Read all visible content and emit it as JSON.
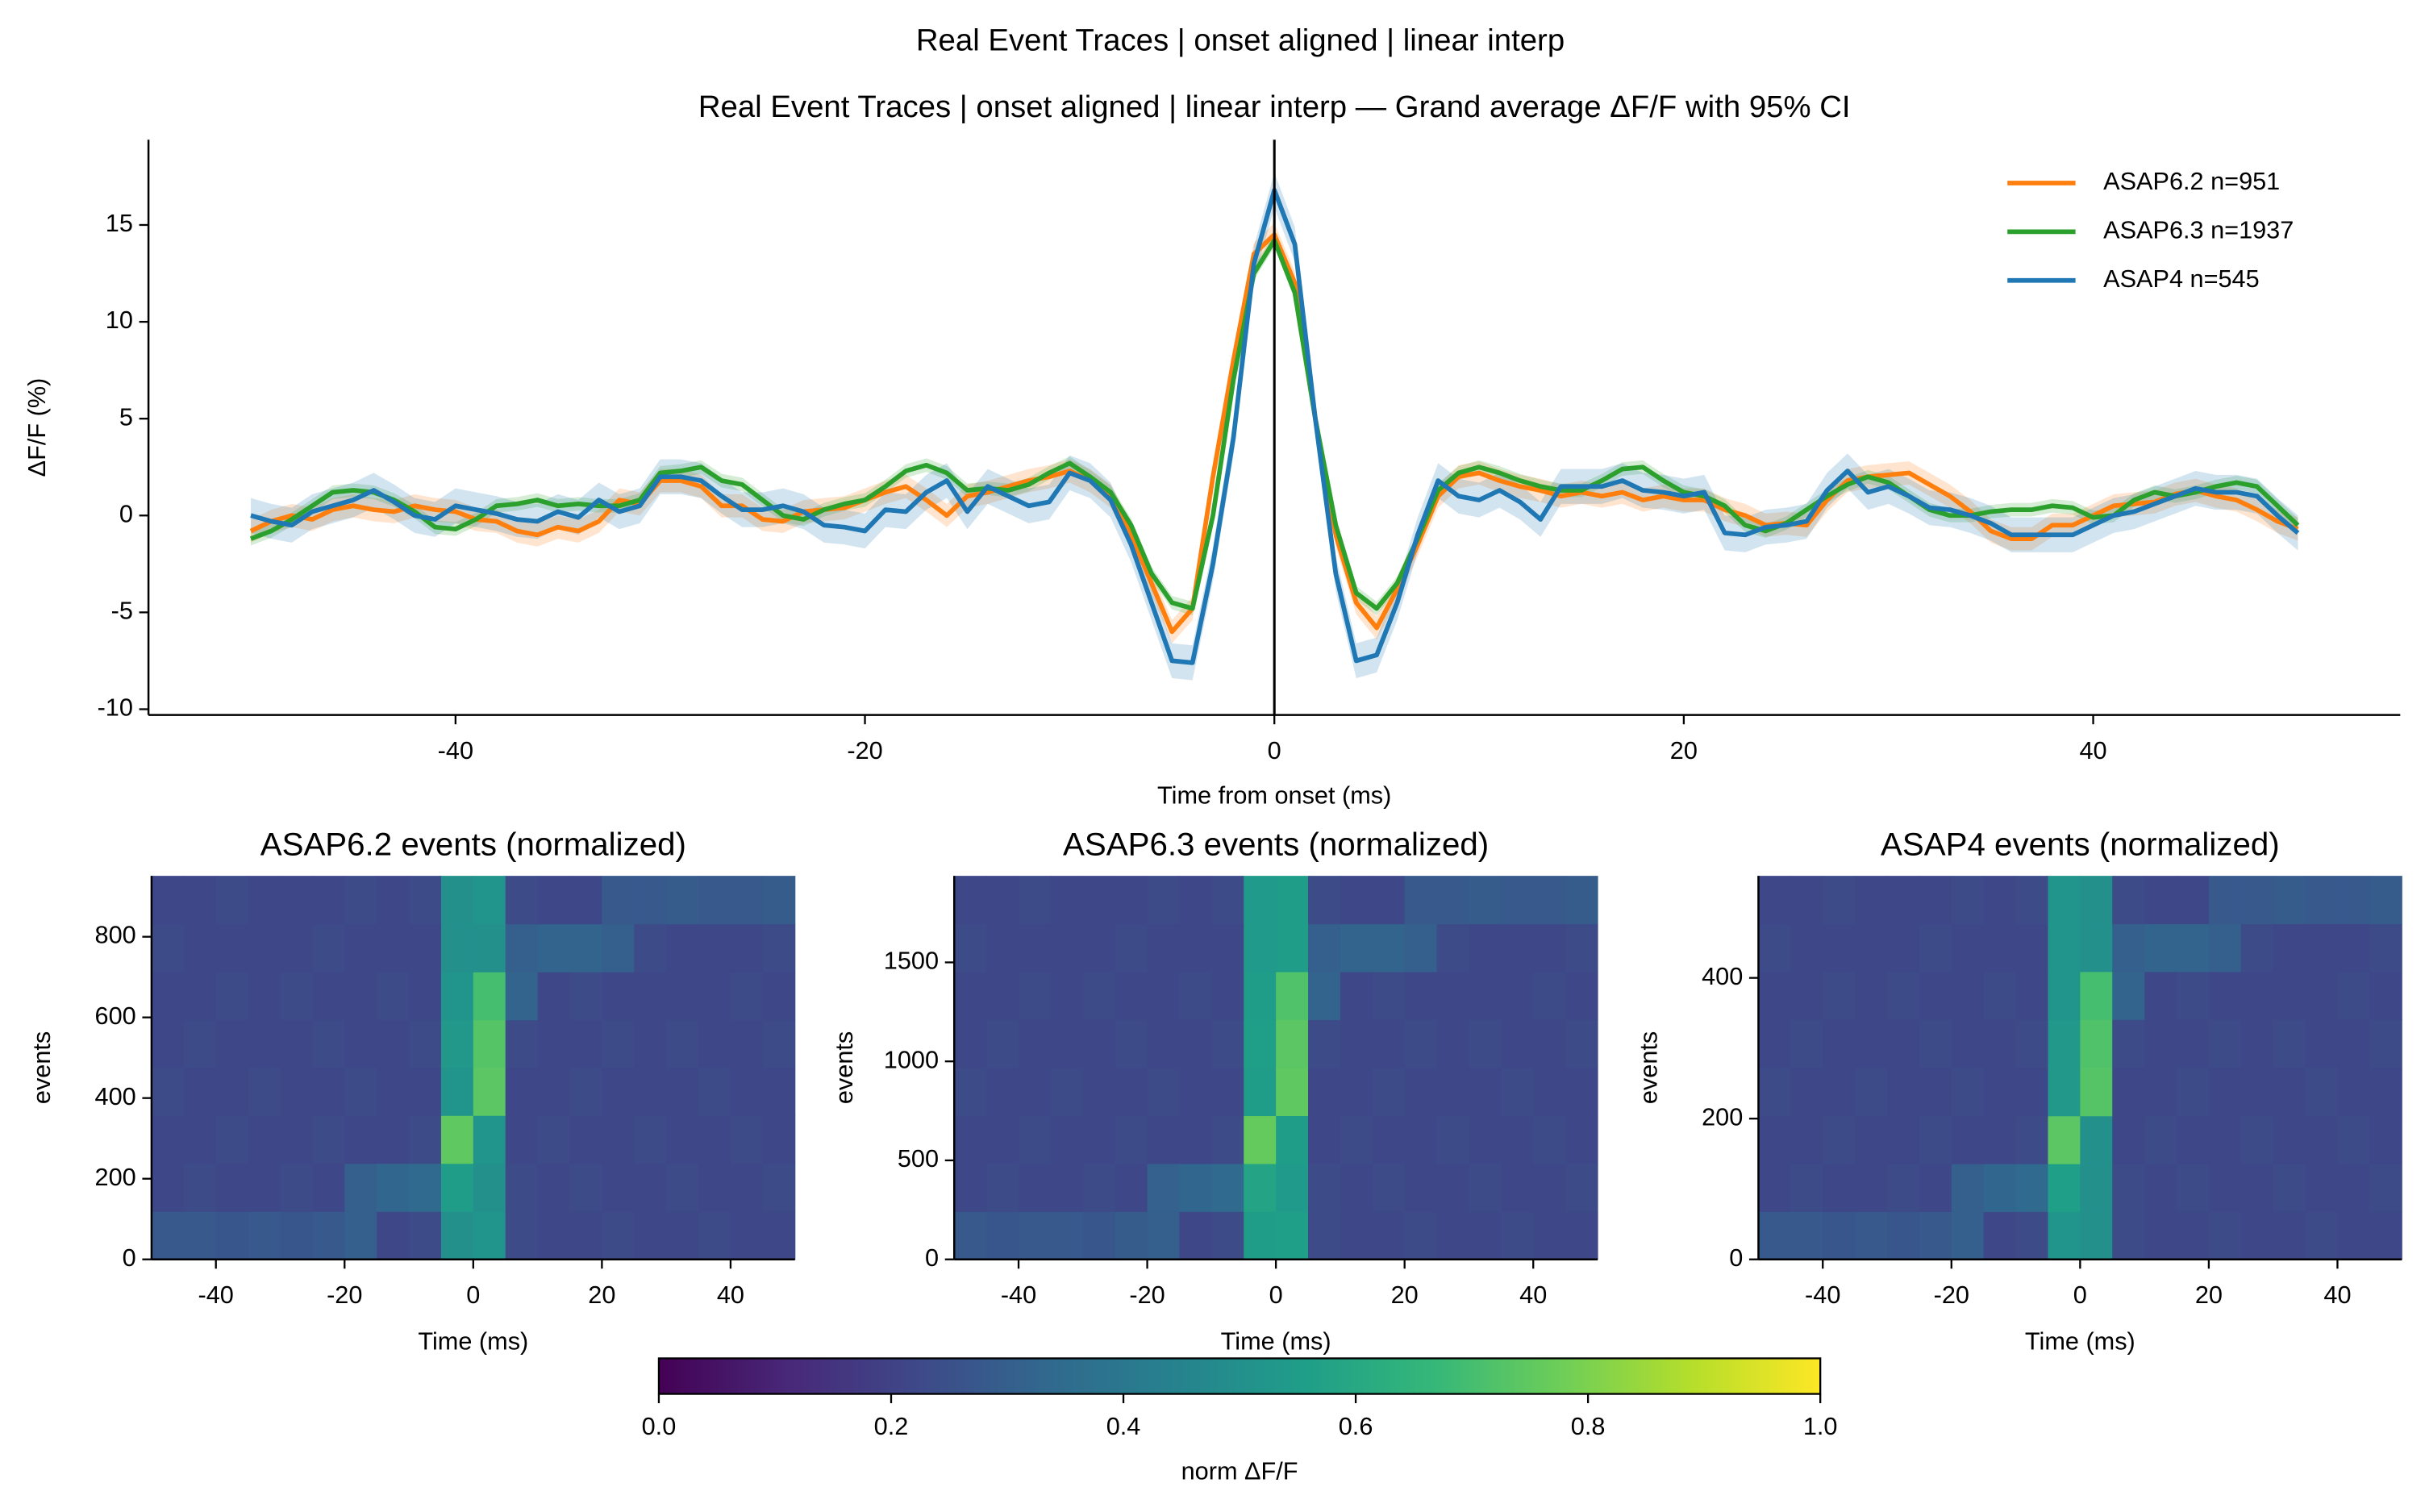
{
  "title": "Real Event Traces | onset aligned | linear interp",
  "chart_data": [
    {
      "type": "line",
      "title": "Real Event Traces | onset aligned | linear interp — Grand average ΔF/F with 95% CI",
      "xlabel": "Time from onset (ms)",
      "ylabel": "ΔF/F (%)",
      "xlim": [
        -55,
        55
      ],
      "ylim": [
        -10.3,
        19.4
      ],
      "xticks": [
        -40,
        -20,
        0,
        20,
        40
      ],
      "yticks": [
        -10,
        -5,
        0,
        5,
        10,
        15
      ],
      "vline": 0,
      "legend": "upper right",
      "x": [
        -50,
        -49,
        -48,
        -47,
        -46,
        -45,
        -44,
        -43,
        -42,
        -41,
        -40,
        -39,
        -38,
        -37,
        -36,
        -35,
        -34,
        -33,
        -32,
        -31,
        -30,
        -29,
        -28,
        -27,
        -26,
        -25,
        -24,
        -23,
        -22,
        -21,
        -20,
        -19,
        -18,
        -17,
        -16,
        -15,
        -14,
        -13,
        -12,
        -11,
        -10,
        -9,
        -8,
        -7,
        -6,
        -5,
        -4,
        -3,
        -2,
        -1,
        0,
        1,
        2,
        3,
        4,
        5,
        6,
        7,
        8,
        9,
        10,
        11,
        12,
        13,
        14,
        15,
        16,
        17,
        18,
        19,
        20,
        21,
        22,
        23,
        24,
        25,
        26,
        27,
        28,
        29,
        30,
        31,
        32,
        33,
        34,
        35,
        36,
        37,
        38,
        39,
        40,
        41,
        42,
        43,
        44,
        45,
        46,
        47,
        48,
        49,
        50
      ],
      "series": [
        {
          "name": "ASAP6.2  n=951",
          "color": "#ff7f0e",
          "ci": 0.6,
          "values": [
            -0.8,
            -0.3,
            0,
            -0.2,
            0.3,
            0.5,
            0.3,
            0.2,
            0.5,
            0.3,
            0.2,
            -0.2,
            -0.3,
            -0.8,
            -1.0,
            -0.6,
            -0.8,
            -0.3,
            0.8,
            0.6,
            1.8,
            1.8,
            1.5,
            0.5,
            0.5,
            -0.2,
            -0.3,
            0.2,
            0.3,
            0.4,
            0.8,
            1.2,
            1.5,
            0.8,
            0.0,
            1.0,
            1.2,
            1.5,
            1.8,
            2.0,
            2.3,
            1.8,
            1.0,
            -1.0,
            -3.5,
            -6.0,
            -4.8,
            2,
            8,
            13.5,
            14.5,
            12,
            5,
            -1,
            -4.5,
            -5.8,
            -3.8,
            -1.5,
            1.0,
            2.0,
            2.2,
            1.8,
            1.5,
            1.3,
            1.0,
            1.2,
            1.0,
            1.2,
            0.8,
            1.0,
            0.8,
            0.8,
            0.3,
            0.0,
            -0.5,
            -0.4,
            -0.5,
            0.8,
            1.8,
            2.0,
            2.1,
            2.2,
            1.6,
            1.0,
            0.2,
            -0.8,
            -1.2,
            -1.2,
            -0.5,
            -0.5,
            0,
            0.5,
            0.6,
            0.7,
            1.1,
            1.3,
            1.0,
            0.8,
            0.3,
            -0.3,
            -0.7
          ]
        },
        {
          "name": "ASAP6.3  n=1937",
          "color": "#2ca02c",
          "ci": 0.35,
          "values": [
            -1.2,
            -0.8,
            -0.2,
            0.5,
            1.2,
            1.3,
            1.2,
            0.8,
            0.2,
            -0.6,
            -0.7,
            -0.2,
            0.5,
            0.6,
            0.8,
            0.5,
            0.6,
            0.5,
            0.5,
            0.8,
            2.2,
            2.3,
            2.5,
            1.8,
            1.6,
            0.8,
            0.0,
            -0.2,
            0.3,
            0.6,
            0.8,
            1.5,
            2.3,
            2.6,
            2.2,
            1.3,
            1.4,
            1.3,
            1.6,
            2.2,
            2.7,
            2.0,
            1.2,
            -0.5,
            -3,
            -4.5,
            -4.8,
            0,
            7,
            12.5,
            14.2,
            11.5,
            5,
            -0.5,
            -4,
            -4.8,
            -3.5,
            -1.2,
            1.3,
            2.2,
            2.5,
            2.2,
            1.8,
            1.5,
            1.3,
            1.3,
            1.8,
            2.4,
            2.5,
            1.8,
            1.2,
            1.0,
            0.5,
            -0.5,
            -0.8,
            -0.4,
            0.3,
            1.0,
            1.6,
            2.0,
            1.7,
            1.0,
            0.3,
            0.0,
            0.0,
            0.2,
            0.3,
            0.3,
            0.5,
            0.4,
            -0.1,
            0.0,
            0.8,
            1.2,
            1.0,
            1.2,
            1.5,
            1.7,
            1.5,
            0.5,
            -0.5
          ]
        },
        {
          "name": "ASAP4  n=545",
          "color": "#1f77b4",
          "ci": 0.9,
          "values": [
            0,
            -0.3,
            -0.5,
            0.2,
            0.5,
            0.8,
            1.3,
            0.7,
            0,
            -0.2,
            0.5,
            0.3,
            0.1,
            -0.2,
            -0.3,
            0.2,
            -0.1,
            0.8,
            0.2,
            0.5,
            2.0,
            2.0,
            1.8,
            1.0,
            0.3,
            0.3,
            0.5,
            0.2,
            -0.5,
            -0.6,
            -0.8,
            0.3,
            0.2,
            1.2,
            1.8,
            0.2,
            1.5,
            1.0,
            0.5,
            0.7,
            2.2,
            1.8,
            0.8,
            -1.5,
            -4.5,
            -7.5,
            -7.6,
            -2.5,
            4,
            13,
            16.8,
            14,
            5,
            -3,
            -7.5,
            -7.2,
            -4.5,
            -1,
            1.8,
            1.0,
            0.8,
            1.3,
            0.7,
            -0.2,
            1.5,
            1.5,
            1.5,
            1.8,
            1.3,
            1.2,
            1.0,
            1.2,
            -0.9,
            -1.0,
            -0.6,
            -0.5,
            -0.3,
            1.3,
            2.3,
            1.2,
            1.5,
            1.0,
            0.4,
            0.3,
            0.0,
            -0.4,
            -1.0,
            -1.0,
            -1.0,
            -1.0,
            -0.5,
            0.0,
            0.2,
            0.6,
            1.0,
            1.4,
            1.2,
            1.2,
            1.0,
            0.0,
            -0.9
          ]
        }
      ]
    },
    {
      "type": "heatmap",
      "title": "ASAP6.2 events (normalized)",
      "xlabel": "Time (ms)",
      "ylabel": "events",
      "colormap": "viridis",
      "xlim": [
        -50,
        50
      ],
      "ylim": [
        0,
        951
      ],
      "xticks": [
        -40,
        -20,
        0,
        20,
        40
      ],
      "yticks": [
        0,
        200,
        400,
        600,
        800
      ],
      "xbins": [
        -50,
        -45,
        -40,
        -35,
        -30,
        -25,
        -20,
        -15,
        -10,
        -5,
        0,
        5,
        10,
        15,
        20,
        25,
        30,
        35,
        40,
        45,
        50
      ],
      "ybins": [
        0,
        119,
        238,
        357,
        476,
        594,
        713,
        832,
        951
      ],
      "values": [
        [
          0.28,
          0.28,
          0.27,
          0.28,
          0.27,
          0.28,
          0.3,
          0.22,
          0.23,
          0.5,
          0.52,
          0.23,
          0.22,
          0.22,
          0.23,
          0.22,
          0.22,
          0.23,
          0.22,
          0.22
        ],
        [
          0.22,
          0.23,
          0.22,
          0.22,
          0.23,
          0.22,
          0.3,
          0.33,
          0.34,
          0.55,
          0.5,
          0.23,
          0.22,
          0.23,
          0.22,
          0.22,
          0.23,
          0.22,
          0.22,
          0.23
        ],
        [
          0.22,
          0.22,
          0.23,
          0.22,
          0.22,
          0.23,
          0.22,
          0.22,
          0.23,
          0.75,
          0.52,
          0.22,
          0.23,
          0.22,
          0.22,
          0.23,
          0.22,
          0.22,
          0.23,
          0.22
        ],
        [
          0.23,
          0.22,
          0.22,
          0.23,
          0.22,
          0.22,
          0.23,
          0.22,
          0.22,
          0.52,
          0.74,
          0.22,
          0.22,
          0.23,
          0.22,
          0.22,
          0.22,
          0.23,
          0.22,
          0.22
        ],
        [
          0.22,
          0.23,
          0.22,
          0.22,
          0.22,
          0.23,
          0.22,
          0.22,
          0.23,
          0.53,
          0.73,
          0.23,
          0.22,
          0.22,
          0.23,
          0.22,
          0.23,
          0.22,
          0.22,
          0.23
        ],
        [
          0.22,
          0.22,
          0.23,
          0.22,
          0.23,
          0.22,
          0.22,
          0.23,
          0.22,
          0.52,
          0.7,
          0.32,
          0.22,
          0.23,
          0.22,
          0.22,
          0.22,
          0.22,
          0.23,
          0.22
        ],
        [
          0.23,
          0.22,
          0.22,
          0.22,
          0.22,
          0.23,
          0.22,
          0.22,
          0.22,
          0.5,
          0.5,
          0.3,
          0.32,
          0.32,
          0.3,
          0.23,
          0.22,
          0.22,
          0.22,
          0.23
        ],
        [
          0.22,
          0.22,
          0.23,
          0.22,
          0.22,
          0.22,
          0.23,
          0.22,
          0.23,
          0.5,
          0.52,
          0.23,
          0.22,
          0.22,
          0.28,
          0.28,
          0.29,
          0.28,
          0.28,
          0.29
        ]
      ]
    },
    {
      "type": "heatmap",
      "title": "ASAP6.3 events (normalized)",
      "xlabel": "Time (ms)",
      "ylabel": "events",
      "colormap": "viridis",
      "xlim": [
        -50,
        50
      ],
      "ylim": [
        0,
        1937
      ],
      "xticks": [
        -40,
        -20,
        0,
        20,
        40
      ],
      "yticks": [
        0,
        500,
        1000,
        1500
      ],
      "xbins": [
        -50,
        -45,
        -40,
        -35,
        -30,
        -25,
        -20,
        -15,
        -10,
        -5,
        0,
        5,
        10,
        15,
        20,
        25,
        30,
        35,
        40,
        45,
        50
      ],
      "ybins": [
        0,
        242,
        484,
        726,
        968,
        1211,
        1453,
        1695,
        1937
      ],
      "values": [
        [
          0.28,
          0.27,
          0.28,
          0.28,
          0.27,
          0.29,
          0.3,
          0.22,
          0.23,
          0.55,
          0.56,
          0.23,
          0.22,
          0.22,
          0.23,
          0.22,
          0.22,
          0.23,
          0.22,
          0.22
        ],
        [
          0.22,
          0.23,
          0.22,
          0.22,
          0.23,
          0.22,
          0.31,
          0.33,
          0.34,
          0.58,
          0.54,
          0.23,
          0.22,
          0.23,
          0.22,
          0.22,
          0.23,
          0.22,
          0.22,
          0.23
        ],
        [
          0.22,
          0.22,
          0.23,
          0.22,
          0.22,
          0.23,
          0.22,
          0.22,
          0.23,
          0.76,
          0.55,
          0.22,
          0.23,
          0.22,
          0.22,
          0.23,
          0.22,
          0.22,
          0.23,
          0.22
        ],
        [
          0.23,
          0.22,
          0.22,
          0.23,
          0.22,
          0.22,
          0.23,
          0.22,
          0.22,
          0.55,
          0.75,
          0.22,
          0.22,
          0.23,
          0.22,
          0.22,
          0.22,
          0.23,
          0.22,
          0.22
        ],
        [
          0.22,
          0.23,
          0.22,
          0.22,
          0.22,
          0.23,
          0.22,
          0.22,
          0.23,
          0.56,
          0.74,
          0.23,
          0.22,
          0.22,
          0.23,
          0.22,
          0.23,
          0.22,
          0.22,
          0.23
        ],
        [
          0.22,
          0.22,
          0.23,
          0.22,
          0.23,
          0.22,
          0.22,
          0.23,
          0.22,
          0.55,
          0.72,
          0.32,
          0.22,
          0.23,
          0.22,
          0.22,
          0.22,
          0.22,
          0.23,
          0.22
        ],
        [
          0.23,
          0.22,
          0.22,
          0.22,
          0.22,
          0.23,
          0.22,
          0.22,
          0.22,
          0.54,
          0.55,
          0.3,
          0.32,
          0.32,
          0.3,
          0.23,
          0.22,
          0.22,
          0.22,
          0.23
        ],
        [
          0.22,
          0.22,
          0.23,
          0.22,
          0.22,
          0.22,
          0.23,
          0.22,
          0.23,
          0.54,
          0.55,
          0.23,
          0.22,
          0.22,
          0.28,
          0.28,
          0.29,
          0.28,
          0.28,
          0.29
        ]
      ]
    },
    {
      "type": "heatmap",
      "title": "ASAP4 events (normalized)",
      "xlabel": "Time (ms)",
      "ylabel": "events",
      "colormap": "viridis",
      "xlim": [
        -50,
        50
      ],
      "ylim": [
        0,
        545
      ],
      "xticks": [
        -40,
        -20,
        0,
        20,
        40
      ],
      "yticks": [
        0,
        200,
        400
      ],
      "xbins": [
        -50,
        -45,
        -40,
        -35,
        -30,
        -25,
        -20,
        -15,
        -10,
        -5,
        0,
        5,
        10,
        15,
        20,
        25,
        30,
        35,
        40,
        45,
        50
      ],
      "ybins": [
        0,
        68,
        136,
        204,
        273,
        341,
        409,
        477,
        545
      ],
      "values": [
        [
          0.28,
          0.28,
          0.27,
          0.28,
          0.27,
          0.28,
          0.3,
          0.22,
          0.23,
          0.52,
          0.5,
          0.23,
          0.22,
          0.22,
          0.23,
          0.22,
          0.22,
          0.23,
          0.22,
          0.22
        ],
        [
          0.22,
          0.23,
          0.22,
          0.22,
          0.23,
          0.22,
          0.3,
          0.33,
          0.34,
          0.56,
          0.5,
          0.23,
          0.22,
          0.23,
          0.22,
          0.22,
          0.23,
          0.22,
          0.22,
          0.23
        ],
        [
          0.22,
          0.22,
          0.23,
          0.22,
          0.22,
          0.23,
          0.22,
          0.22,
          0.23,
          0.74,
          0.5,
          0.22,
          0.23,
          0.22,
          0.22,
          0.23,
          0.22,
          0.22,
          0.23,
          0.22
        ],
        [
          0.23,
          0.22,
          0.22,
          0.23,
          0.22,
          0.22,
          0.23,
          0.22,
          0.22,
          0.53,
          0.73,
          0.22,
          0.22,
          0.23,
          0.22,
          0.22,
          0.22,
          0.23,
          0.22,
          0.22
        ],
        [
          0.22,
          0.23,
          0.22,
          0.22,
          0.22,
          0.23,
          0.22,
          0.22,
          0.23,
          0.53,
          0.72,
          0.23,
          0.22,
          0.22,
          0.23,
          0.22,
          0.23,
          0.22,
          0.22,
          0.23
        ],
        [
          0.22,
          0.22,
          0.23,
          0.22,
          0.23,
          0.22,
          0.22,
          0.23,
          0.22,
          0.52,
          0.7,
          0.32,
          0.22,
          0.23,
          0.22,
          0.22,
          0.22,
          0.22,
          0.23,
          0.22
        ],
        [
          0.23,
          0.22,
          0.22,
          0.22,
          0.22,
          0.23,
          0.22,
          0.22,
          0.22,
          0.52,
          0.5,
          0.3,
          0.32,
          0.32,
          0.3,
          0.23,
          0.22,
          0.22,
          0.22,
          0.23
        ],
        [
          0.22,
          0.22,
          0.23,
          0.22,
          0.22,
          0.22,
          0.23,
          0.22,
          0.23,
          0.52,
          0.5,
          0.23,
          0.22,
          0.22,
          0.28,
          0.28,
          0.29,
          0.28,
          0.28,
          0.29
        ]
      ]
    },
    {
      "type": "colorbar",
      "label": "norm ΔF/F",
      "colormap": "viridis",
      "xlim": [
        0,
        1
      ],
      "xticks": [
        {
          "value": 0,
          "label": "0.0"
        },
        {
          "value": 0.2,
          "label": "0.2"
        },
        {
          "value": 0.4,
          "label": "0.4"
        },
        {
          "value": 0.6,
          "label": "0.6"
        },
        {
          "value": 0.8,
          "label": "0.8"
        },
        {
          "value": 1,
          "label": "1.0"
        }
      ]
    }
  ]
}
